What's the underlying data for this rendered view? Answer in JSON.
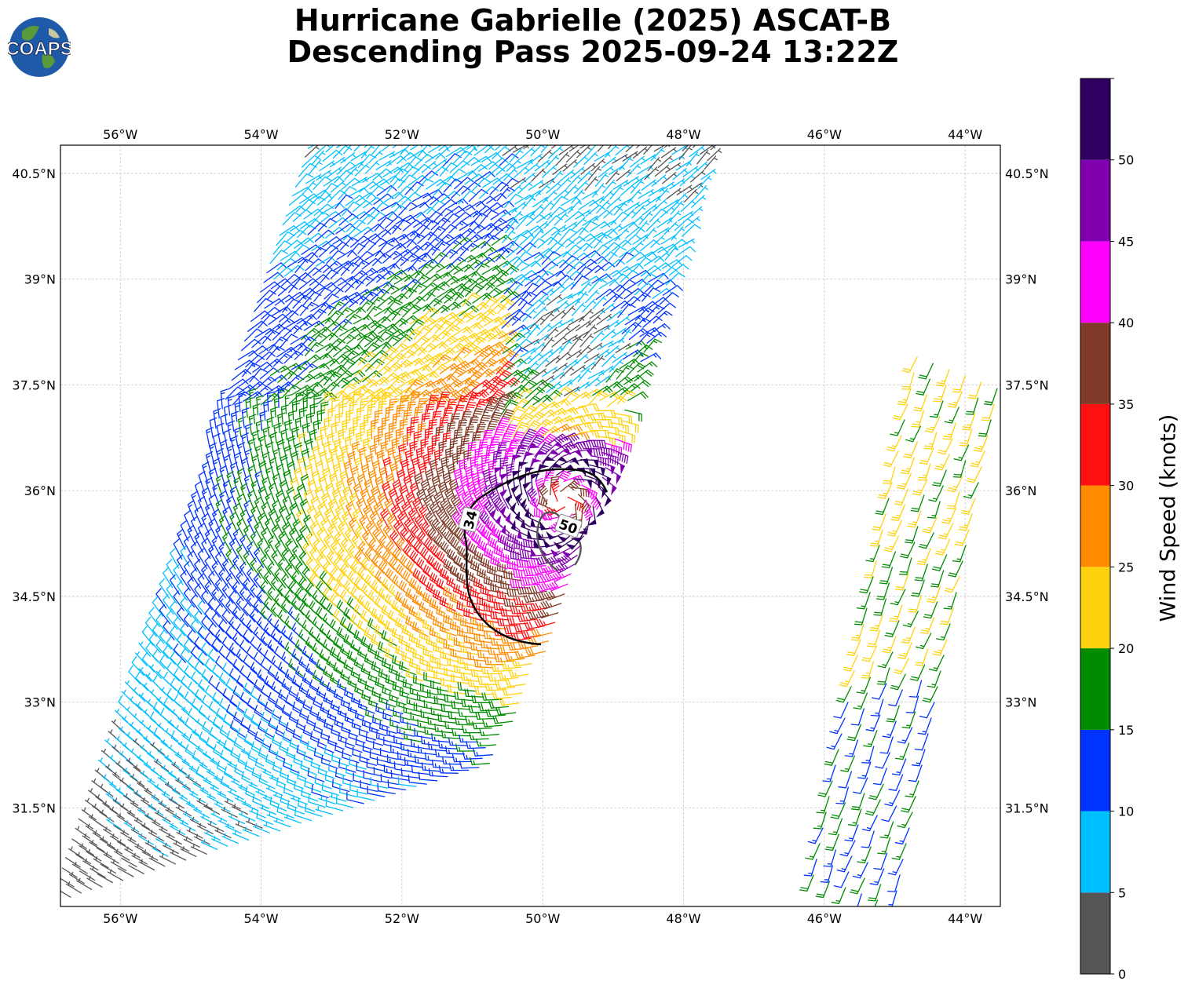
{
  "header": {
    "logo_text": "COAPS",
    "title_line1": "Hurricane Gabrielle (2025) ASCAT-B",
    "title_line2": "Descending Pass 2025-09-24 13:22Z"
  },
  "chart_data": {
    "type": "wind-barb-map",
    "title": "Hurricane Gabrielle (2025) ASCAT-B Descending Pass 2025-09-24 13:22Z",
    "lon_range": [
      -56.85,
      -43.5
    ],
    "lat_range": [
      30.1,
      40.9
    ],
    "lon_ticks": [
      "56°W",
      "54°W",
      "52°W",
      "50°W",
      "48°W",
      "46°W",
      "44°W"
    ],
    "lon_tick_values": [
      -56,
      -54,
      -52,
      -50,
      -48,
      -46,
      -44
    ],
    "lat_ticks": [
      "40.5°N",
      "39°N",
      "37.5°N",
      "36°N",
      "34.5°N",
      "33°N",
      "31.5°N"
    ],
    "lat_tick_values": [
      40.5,
      39,
      37.5,
      36,
      34.5,
      33,
      31.5
    ],
    "grid": true,
    "storm_center": {
      "lon": -49.7,
      "lat": 35.85
    },
    "contours": [
      {
        "label": "34",
        "color": "#000000"
      },
      {
        "label": "50",
        "color": "#555555"
      }
    ],
    "colorbar": {
      "label": "Wind Speed (knots)",
      "ticks": [
        "0",
        "5",
        "10",
        "15",
        "20",
        "25",
        "30",
        "35",
        "40",
        "45",
        "50"
      ],
      "bins": [
        {
          "min": 0,
          "max": 5,
          "color": "#555555"
        },
        {
          "min": 5,
          "max": 10,
          "color": "#00bfff"
        },
        {
          "min": 10,
          "max": 15,
          "color": "#0033ff"
        },
        {
          "min": 15,
          "max": 20,
          "color": "#008c00"
        },
        {
          "min": 20,
          "max": 25,
          "color": "#ffd20f"
        },
        {
          "min": 25,
          "max": 30,
          "color": "#ff8c00"
        },
        {
          "min": 30,
          "max": 35,
          "color": "#ff1010"
        },
        {
          "min": 35,
          "max": 40,
          "color": "#7f3b27"
        },
        {
          "min": 40,
          "max": 45,
          "color": "#ff00ff"
        },
        {
          "min": 45,
          "max": 50,
          "color": "#8000b0"
        },
        {
          "min": 50,
          "max": 55,
          "color": "#300060"
        }
      ]
    }
  }
}
